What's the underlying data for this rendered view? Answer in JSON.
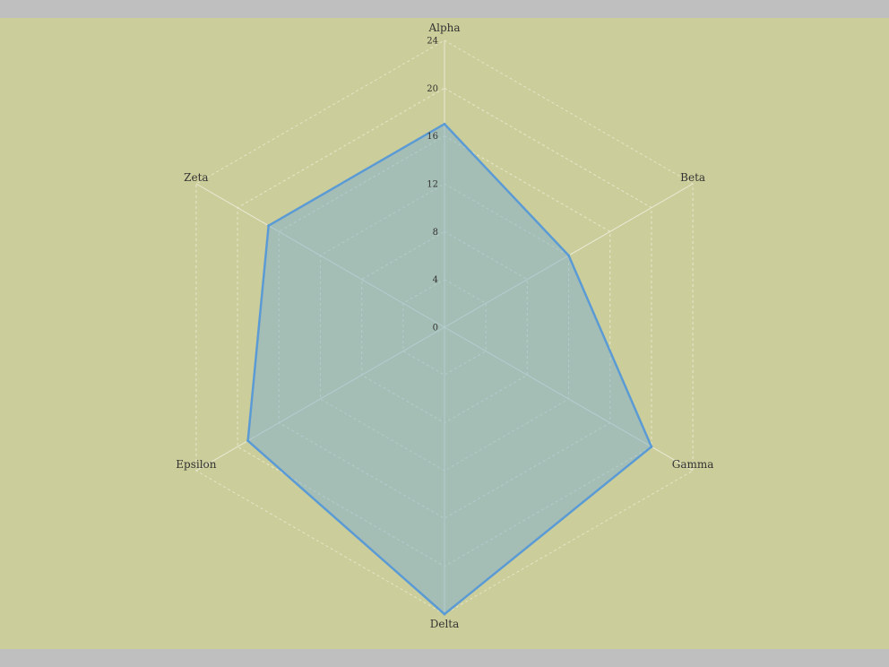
{
  "chart_data": {
    "type": "radar",
    "axes": [
      "Alpha",
      "Beta",
      "Gamma",
      "Delta",
      "Epsilon",
      "Zeta"
    ],
    "ticks": [
      0,
      4,
      8,
      12,
      16,
      20,
      24
    ],
    "tick_labels": [
      "0",
      "4",
      "8",
      "12",
      "16",
      "20",
      "24"
    ],
    "rlim": [
      0,
      24
    ],
    "grid": true,
    "series": [
      {
        "values": [
          17,
          12,
          20,
          24,
          19,
          17
        ]
      }
    ]
  },
  "colors": {
    "background": "#cbcd9a",
    "series_line": "#5b9bd5",
    "series_fill": "#86b2cc",
    "grid": "#e6e8cc",
    "spoke": "#e9ebd6"
  }
}
